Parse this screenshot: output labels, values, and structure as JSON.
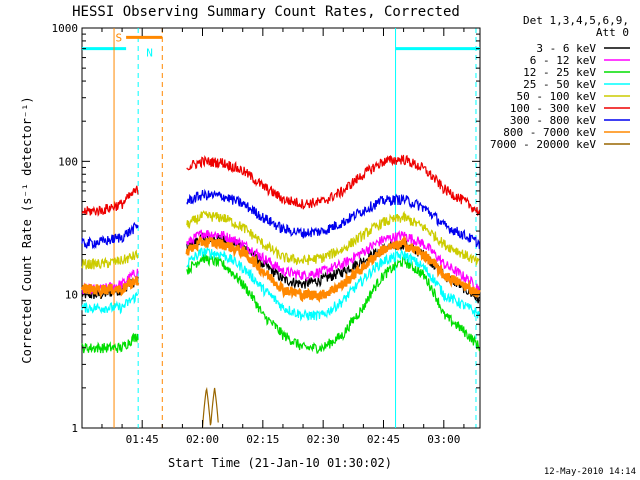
{
  "chart_data": {
    "type": "line",
    "title": "HESSI Observing Summary Count Rates, Corrected",
    "xlabel": "Start Time (21-Jan-10 01:30:02)",
    "ylabel": "Corrected Count Rate (s⁻¹ detector⁻¹)",
    "yscale": "log",
    "ylim": [
      1,
      1000
    ],
    "xlim": [
      "01:30:02",
      "03:09:00"
    ],
    "x_ticks": [
      "01:45",
      "02:00",
      "02:15",
      "02:30",
      "02:45",
      "03:00"
    ],
    "y_ticks": [
      "1",
      "10",
      "100",
      "1000"
    ],
    "legend_header": [
      "Det 1,3,4,5,6,9,",
      "Att 0"
    ],
    "legend_position": "right",
    "grid": false,
    "timestamp": "12-May-2010 14:14",
    "series": [
      {
        "name": "3 - 6 keV",
        "color": "#000000",
        "x": [
          "01:30",
          "01:35",
          "01:40",
          "01:44",
          "01:56",
          "02:00",
          "02:05",
          "02:10",
          "02:15",
          "02:20",
          "02:25",
          "02:30",
          "02:35",
          "02:40",
          "02:45",
          "02:50",
          "02:55",
          "03:00",
          "03:09"
        ],
        "values": [
          10,
          10,
          11,
          13,
          22,
          27,
          26,
          23,
          17,
          13,
          12,
          13,
          15,
          18,
          22,
          24,
          20,
          14,
          9
        ]
      },
      {
        "name": "6 - 12 keV",
        "color": "#ff00ff",
        "x": [
          "01:30",
          "01:35",
          "01:40",
          "01:44",
          "01:56",
          "02:00",
          "02:05",
          "02:10",
          "02:15",
          "02:20",
          "02:25",
          "02:30",
          "02:35",
          "02:40",
          "02:45",
          "02:50",
          "02:55",
          "03:00",
          "03:09"
        ],
        "values": [
          11,
          11,
          12,
          15,
          24,
          29,
          28,
          24,
          19,
          15,
          14,
          15,
          17,
          21,
          26,
          28,
          24,
          17,
          11
        ]
      },
      {
        "name": "12 - 25 keV",
        "color": "#00dd00",
        "x": [
          "01:30",
          "01:35",
          "01:40",
          "01:44",
          "01:56",
          "02:00",
          "02:05",
          "02:10",
          "02:15",
          "02:20",
          "02:25",
          "02:30",
          "02:35",
          "02:40",
          "02:45",
          "02:50",
          "02:55",
          "03:00",
          "03:09"
        ],
        "values": [
          4,
          4,
          4,
          5,
          15,
          19,
          17,
          12,
          7,
          5,
          4,
          4,
          5,
          8,
          14,
          18,
          14,
          7,
          4
        ]
      },
      {
        "name": "25 - 50 keV",
        "color": "#00ffff",
        "x": [
          "01:30",
          "01:35",
          "01:40",
          "01:44",
          "01:56",
          "02:00",
          "02:05",
          "02:10",
          "02:15",
          "02:20",
          "02:25",
          "02:30",
          "02:35",
          "02:40",
          "02:45",
          "02:50",
          "02:55",
          "03:00",
          "03:09"
        ],
        "values": [
          8,
          8,
          8,
          10,
          17,
          21,
          20,
          16,
          11,
          8,
          7,
          7,
          9,
          13,
          18,
          20,
          16,
          10,
          7
        ]
      },
      {
        "name": "50 - 100 keV",
        "color": "#cccc00",
        "x": [
          "01:30",
          "01:35",
          "01:40",
          "01:44",
          "01:56",
          "02:00",
          "02:05",
          "02:10",
          "02:15",
          "02:20",
          "02:25",
          "02:30",
          "02:35",
          "02:40",
          "02:45",
          "02:50",
          "02:55",
          "03:00",
          "03:09"
        ],
        "values": [
          17,
          17,
          18,
          20,
          33,
          39,
          38,
          32,
          24,
          19,
          18,
          19,
          22,
          28,
          35,
          38,
          32,
          24,
          17
        ]
      },
      {
        "name": "100 - 300 keV",
        "color": "#ee0000",
        "x": [
          "01:30",
          "01:35",
          "01:40",
          "01:44",
          "01:56",
          "02:00",
          "02:05",
          "02:10",
          "02:15",
          "02:20",
          "02:25",
          "02:30",
          "02:35",
          "02:40",
          "02:45",
          "02:50",
          "02:55",
          "03:00",
          "03:09"
        ],
        "values": [
          42,
          43,
          48,
          62,
          90,
          100,
          98,
          85,
          65,
          52,
          48,
          50,
          60,
          80,
          100,
          104,
          88,
          62,
          41
        ]
      },
      {
        "name": "300 - 800 keV",
        "color": "#0000ee",
        "x": [
          "01:30",
          "01:35",
          "01:40",
          "01:44",
          "01:56",
          "02:00",
          "02:05",
          "02:10",
          "02:15",
          "02:20",
          "02:25",
          "02:30",
          "02:35",
          "02:40",
          "02:45",
          "02:50",
          "02:55",
          "03:00",
          "03:09"
        ],
        "values": [
          24,
          25,
          27,
          33,
          50,
          56,
          55,
          48,
          38,
          31,
          29,
          30,
          35,
          43,
          51,
          52,
          45,
          33,
          24
        ]
      },
      {
        "name": "800 - 7000 keV",
        "color": "#ff8800",
        "x": [
          "01:30",
          "01:35",
          "01:40",
          "01:44",
          "01:56",
          "02:00",
          "02:05",
          "02:10",
          "02:15",
          "02:20",
          "02:25",
          "02:30",
          "02:35",
          "02:40",
          "02:45",
          "02:50",
          "02:55",
          "03:00",
          "03:09"
        ],
        "values": [
          11,
          11,
          11,
          13,
          21,
          25,
          24,
          21,
          15,
          11,
          10,
          10,
          12,
          16,
          22,
          24,
          20,
          14,
          10
        ]
      },
      {
        "name": "7000 - 20000 keV",
        "color": "#996600",
        "x": [
          "02:00",
          "02:01",
          "02:02",
          "02:03",
          "02:04"
        ],
        "values": [
          1,
          2,
          1,
          2,
          1
        ]
      }
    ]
  },
  "annotations": {
    "s_label": "S",
    "n_label": "N",
    "saa_color": "#00ffff",
    "s_color": "#ff8800",
    "n_color": "#00ffff",
    "night_level": 700
  }
}
